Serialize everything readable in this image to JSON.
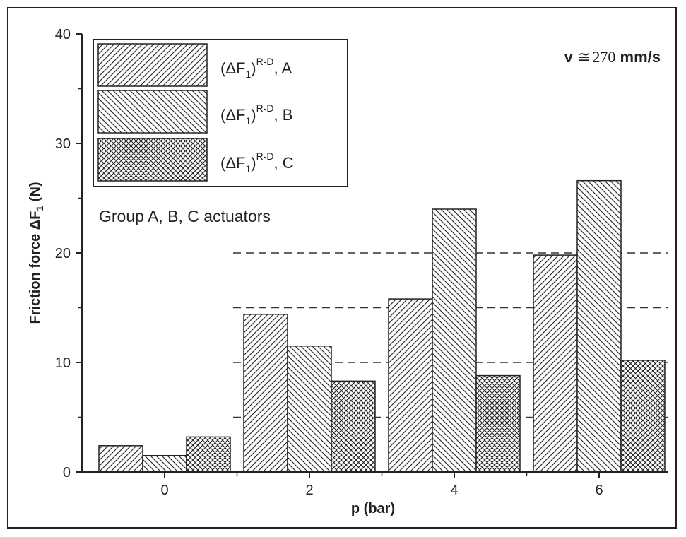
{
  "chart_data": {
    "type": "bar",
    "categories": [
      "0",
      "2",
      "4",
      "6"
    ],
    "series": [
      {
        "name": "(ΔF1)R-D , A",
        "values": [
          2.4,
          14.4,
          15.8,
          19.8
        ]
      },
      {
        "name": "(ΔF1)R-D , B",
        "values": [
          1.5,
          11.5,
          24.0,
          26.6
        ]
      },
      {
        "name": "(ΔF1)R-D , C",
        "values": [
          3.2,
          8.3,
          8.8,
          10.2
        ]
      }
    ],
    "xlabel": "p (bar)",
    "ylabel_prefix": "Friction force",
    "ylabel_symbol": "ΔF",
    "ylabel_sub": "1",
    "ylabel_unit": "(N)",
    "ylim": [
      0,
      40
    ],
    "yticks": [
      "0",
      "10",
      "20",
      "30",
      "40"
    ],
    "reference_lines": [
      5,
      10,
      15,
      20
    ],
    "legend": {
      "placement": "top-left",
      "entries": [
        {
          "base": "(ΔF",
          "sub": "1",
          "close": ")",
          "sup": "R-D",
          "tail": ",  A",
          "pattern": "diag-right"
        },
        {
          "base": "(ΔF",
          "sub": "1",
          "close": ")",
          "sup": "R-D",
          "tail": ",  B",
          "pattern": "diag-left"
        },
        {
          "base": "(ΔF",
          "sub": "1",
          "close": ")",
          "sup": "R-D",
          "tail": ",  C",
          "pattern": "crosshatch"
        }
      ]
    },
    "annotations": {
      "group_text": "Group A, B, C actuators",
      "speed_v": "v",
      "speed_sym": "≅",
      "speed_num": "270",
      "speed_unit": "mm/s"
    }
  }
}
